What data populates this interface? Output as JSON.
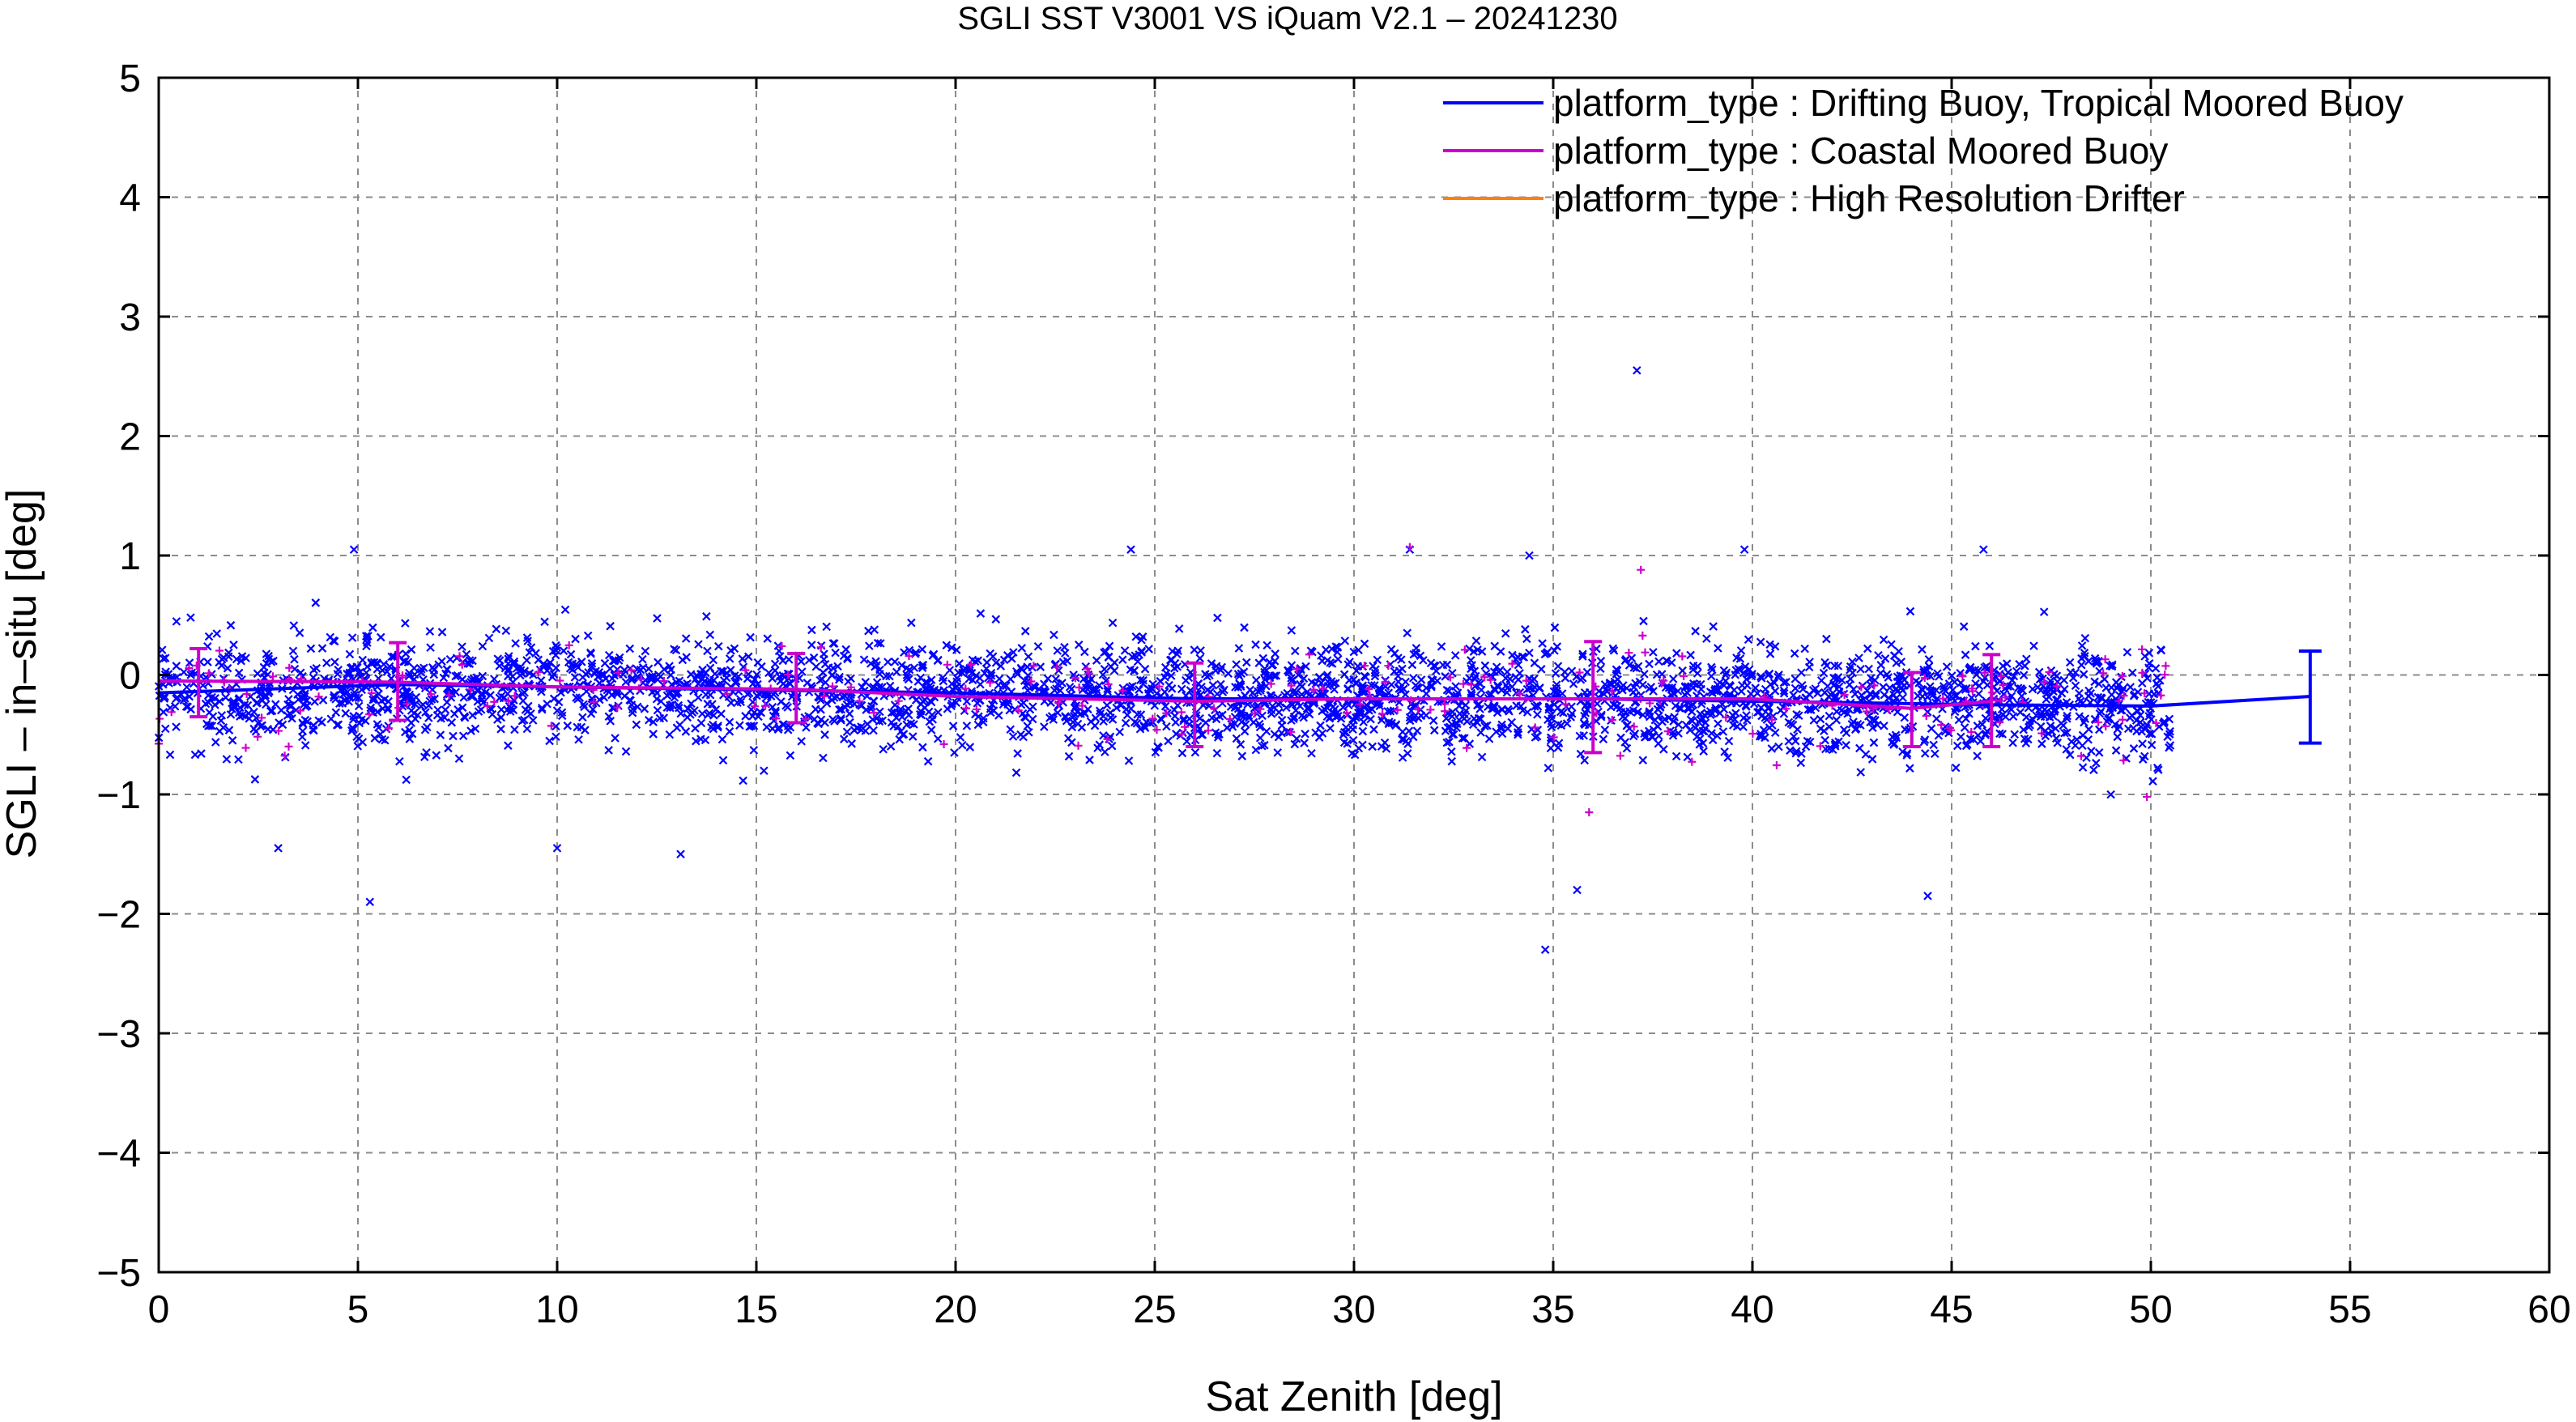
{
  "colors": {
    "drifting": "#0000ff",
    "coastal": "#cc00cc",
    "hires": "#ff7f0e",
    "grid": "#8c8c8c",
    "axis": "#000000"
  },
  "chart_data": {
    "type": "scatter",
    "title": "SGLI SST V3001 VS iQuam V2.1  – 20241230",
    "xlabel": "Sat Zenith [deg]",
    "ylabel": "SGLI – in–situ [deg]",
    "xlim": [
      0,
      60
    ],
    "ylim": [
      -5,
      5
    ],
    "x_ticks": [
      0,
      5,
      10,
      15,
      20,
      25,
      30,
      35,
      40,
      45,
      50,
      55,
      60
    ],
    "x_tick_labels": [
      "0",
      "5",
      "10",
      "15",
      "20",
      "25",
      "30",
      "35",
      "40",
      "45",
      "50",
      "55",
      "60"
    ],
    "y_ticks": [
      5,
      4,
      3,
      2,
      1,
      0,
      -1,
      -2,
      -3,
      -4,
      -5
    ],
    "y_tick_labels": [
      "5",
      "4",
      "3",
      "2",
      "1",
      "0",
      "−1",
      "−2",
      "−3",
      "−4",
      "−5"
    ],
    "grid": true,
    "legend_position": "top-right",
    "series": [
      {
        "name": "platform_type : Drifting Buoy, Tropical Moored Buoy",
        "color_key": "drifting",
        "marker": "x",
        "x_range": [
          0,
          50.5
        ],
        "approx_points": 3200,
        "bias_trend": [
          [
            0,
            -0.15
          ],
          [
            10,
            -0.1
          ],
          [
            20,
            -0.15
          ],
          [
            30,
            -0.2
          ],
          [
            40,
            -0.2
          ],
          [
            50,
            -0.25
          ]
        ],
        "spread_sd": 0.32,
        "outliers": [
          [
            37.1,
            2.55
          ],
          [
            34.8,
            -2.3
          ],
          [
            5.3,
            -1.9
          ],
          [
            3.0,
            -1.45
          ],
          [
            10.0,
            -1.45
          ],
          [
            13.1,
            -1.5
          ],
          [
            44.4,
            -1.85
          ],
          [
            35.6,
            -1.8
          ],
          [
            4.9,
            1.05
          ],
          [
            24.4,
            1.05
          ],
          [
            31.4,
            1.05
          ],
          [
            39.8,
            1.05
          ],
          [
            45.8,
            1.05
          ],
          [
            34.4,
            1.0
          ]
        ],
        "mean_line": [
          [
            0,
            -0.15
          ],
          [
            6,
            -0.08
          ],
          [
            10,
            -0.1
          ],
          [
            16,
            -0.13
          ],
          [
            20,
            -0.15
          ],
          [
            26,
            -0.2
          ],
          [
            30,
            -0.2
          ],
          [
            36,
            -0.2
          ],
          [
            40,
            -0.22
          ],
          [
            46,
            -0.25
          ],
          [
            50,
            -0.26
          ],
          [
            54,
            -0.18
          ]
        ],
        "error_bars": [
          {
            "x": 54,
            "mean": -0.18,
            "low": -0.57,
            "high": 0.2
          }
        ]
      },
      {
        "name": "platform_type : Coastal Moored Buoy",
        "color_key": "coastal",
        "marker": "+",
        "x_range": [
          0,
          50.5
        ],
        "approx_points": 220,
        "outliers": [
          [
            31.4,
            1.07
          ],
          [
            37.2,
            0.88
          ],
          [
            35.9,
            -1.15
          ],
          [
            49.9,
            -1.02
          ]
        ],
        "mean_line": [
          [
            0,
            -0.05
          ],
          [
            6,
            -0.06
          ],
          [
            10,
            -0.1
          ],
          [
            16,
            -0.12
          ],
          [
            20,
            -0.18
          ],
          [
            26,
            -0.22
          ],
          [
            30,
            -0.2
          ],
          [
            36,
            -0.2
          ],
          [
            40,
            -0.2
          ],
          [
            44,
            -0.28
          ],
          [
            46,
            -0.22
          ]
        ],
        "error_bars": [
          {
            "x": 1,
            "mean": -0.05,
            "low": -0.35,
            "high": 0.22
          },
          {
            "x": 6,
            "mean": -0.06,
            "low": -0.38,
            "high": 0.27
          },
          {
            "x": 16,
            "mean": -0.12,
            "low": -0.4,
            "high": 0.18
          },
          {
            "x": 26,
            "mean": -0.22,
            "low": -0.6,
            "high": 0.1
          },
          {
            "x": 36,
            "mean": -0.2,
            "low": -0.65,
            "high": 0.28
          },
          {
            "x": 44,
            "mean": -0.28,
            "low": -0.6,
            "high": 0.02
          },
          {
            "x": 46,
            "mean": -0.22,
            "low": -0.6,
            "high": 0.17
          }
        ]
      },
      {
        "name": "platform_type : High Resolution Drifter",
        "color_key": "hires",
        "marker": "x",
        "approx_points": 0
      }
    ]
  }
}
